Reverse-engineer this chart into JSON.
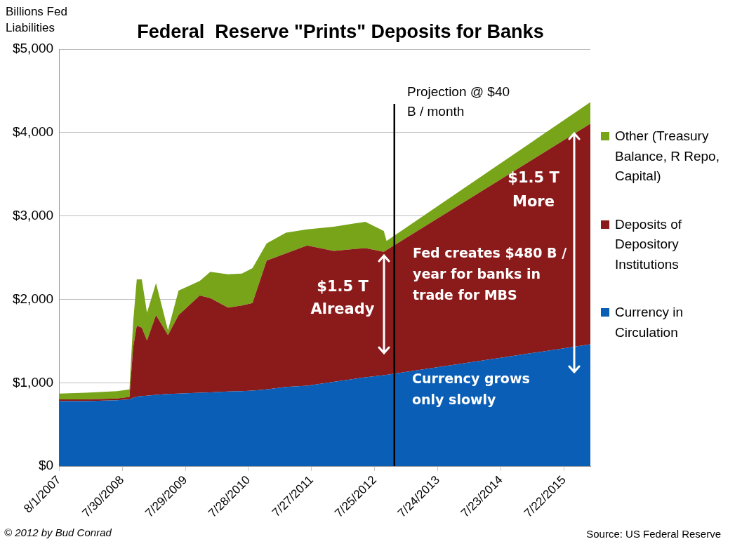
{
  "chart_data": {
    "type": "area",
    "stacked": true,
    "title": "Federal  Reserve \"Prints\" Deposits for Banks",
    "ylabel": "Billions Fed\nLiabilities",
    "x": [
      "2007-08-01",
      "2008-01-01",
      "2008-07-01",
      "2008-09-10",
      "2008-10-01",
      "2008-10-22",
      "2008-11-20",
      "2008-12-20",
      "2009-02-10",
      "2009-04-20",
      "2009-06-20",
      "2009-10-20",
      "2009-12-20",
      "2010-04-01",
      "2010-06-20",
      "2010-08-20",
      "2010-11-10",
      "2011-03-01",
      "2011-07-01",
      "2011-12-01",
      "2012-06-01",
      "2012-09-15",
      "2012-10-01",
      "2015-12-20"
    ],
    "series": [
      {
        "name": "Currency in Circulation",
        "color": "#0a5eb6",
        "values": [
          780,
          780,
          790,
          800,
          820,
          835,
          840,
          845,
          855,
          865,
          870,
          880,
          885,
          895,
          900,
          905,
          920,
          950,
          965,
          1010,
          1065,
          1090,
          1095,
          1460
        ]
      },
      {
        "name": "Deposits of Depository Institutions",
        "color": "#8b1a1a",
        "values": [
          20,
          20,
          20,
          30,
          600,
          850,
          820,
          660,
          955,
          705,
          940,
          1165,
          1130,
          1005,
          1025,
          1050,
          1545,
          1600,
          1680,
          1570,
          1550,
          1480,
          1495,
          2645
        ]
      },
      {
        "name": "Other (Treasury Balance, R Repo, Capital)",
        "color": "#77a419",
        "values": [
          70,
          80,
          90,
          90,
          300,
          555,
          580,
          335,
          385,
          60,
          295,
          175,
          315,
          400,
          385,
          420,
          205,
          250,
          195,
          290,
          315,
          250,
          110,
          260
        ]
      }
    ],
    "xlim": [
      "2007-08-01",
      "2015-12-20"
    ],
    "xticks": [
      {
        "value": "2007-08-01",
        "label": "8/1/2007"
      },
      {
        "value": "2008-07-30",
        "label": "7/30/2008"
      },
      {
        "value": "2009-07-29",
        "label": "7/29/2009"
      },
      {
        "value": "2010-07-28",
        "label": "7/28/2010"
      },
      {
        "value": "2011-07-27",
        "label": "7/27/2011"
      },
      {
        "value": "2012-07-25",
        "label": "7/25/2012"
      },
      {
        "value": "2013-07-24",
        "label": "7/24/2013"
      },
      {
        "value": "2014-07-23",
        "label": "7/23/2014"
      },
      {
        "value": "2015-07-22",
        "label": "7/22/2015"
      }
    ],
    "ylim": [
      0,
      5000
    ],
    "yticks": [
      {
        "value": 0,
        "label": "$0"
      },
      {
        "value": 1000,
        "label": "$1,000"
      },
      {
        "value": 2000,
        "label": "$2,000"
      },
      {
        "value": 3000,
        "label": "$3,000"
      },
      {
        "value": 4000,
        "label": "$4,000"
      },
      {
        "value": 5000,
        "label": "$5,000"
      }
    ],
    "grid": "y",
    "legend": "right",
    "ref_lines": [
      {
        "axis": "x",
        "value": "2012-11-15",
        "color": "#000000"
      }
    ],
    "annotations": [
      "Projection @ $40\nB / month",
      "$1.5 T\nAlready",
      "$1.5 T\nMore",
      "Fed creates $480 B /\nyear for banks in\ntrade for MBS",
      "Currency grows\nonly slowly",
      "© 2012 by Bud Conrad",
      "Source: US Federal Reserve"
    ]
  }
}
